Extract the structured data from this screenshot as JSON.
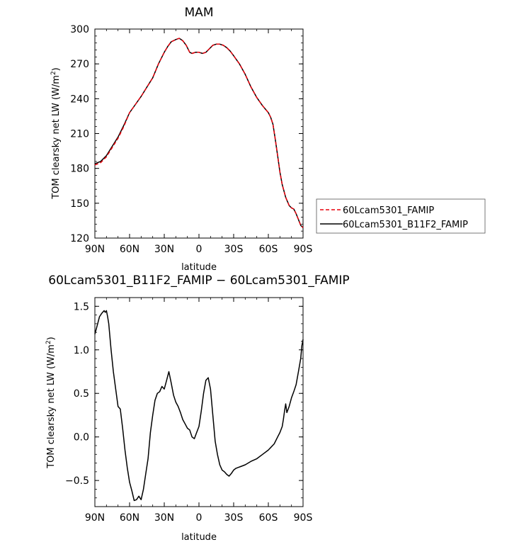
{
  "chart_data": [
    {
      "type": "line",
      "title": "MAM",
      "xlabel": "latitude",
      "ylabel": "TOM clearsky net LW (W/m²)",
      "ylabel_main": "TOM clearsky net LW (W/m",
      "ylabel_sup": "2",
      "ylabel_end": ")",
      "xlim": [
        90,
        -90
      ],
      "ylim": [
        120,
        300
      ],
      "x_ticks": [
        90,
        60,
        30,
        0,
        -30,
        -60,
        -90
      ],
      "x_tick_labels": [
        "90N",
        "60N",
        "30N",
        "0",
        "30S",
        "60S",
        "90S"
      ],
      "y_ticks": [
        120,
        150,
        180,
        210,
        240,
        270,
        300
      ],
      "y_tick_labels": [
        "120",
        "150",
        "180",
        "210",
        "240",
        "270",
        "300"
      ],
      "legend_position": "right",
      "series": [
        {
          "name": "60Lcam5301_FAMIP",
          "color": "#e8000b",
          "dash": "dashed",
          "x": [
            90,
            85,
            80,
            75,
            70,
            65,
            60,
            55,
            50,
            45,
            40,
            35,
            30,
            27,
            24,
            20,
            17,
            14,
            11,
            8,
            6,
            3,
            0,
            -3,
            -6,
            -9,
            -12,
            -15,
            -18,
            -21,
            -24,
            -27,
            -30,
            -35,
            -40,
            -45,
            -50,
            -55,
            -60,
            -62,
            -64,
            -66,
            -68,
            -70,
            -72,
            -75,
            -78,
            -80,
            -82,
            -84,
            -86,
            -88,
            -90
          ],
          "y": [
            183,
            185,
            190,
            198,
            206,
            216,
            228,
            235,
            242,
            250,
            258,
            270,
            280,
            285,
            289,
            291,
            292,
            290,
            286,
            280,
            279,
            280,
            280,
            279,
            280,
            283,
            286,
            287,
            287,
            286,
            284,
            281,
            277,
            270,
            261,
            250,
            241,
            234,
            228,
            224,
            218,
            205,
            191,
            177,
            166,
            155,
            148,
            146,
            145,
            141,
            136,
            131,
            129
          ]
        },
        {
          "name": "60Lcam5301_B11F2_FAMIP",
          "color": "#000000",
          "dash": "solid",
          "x": [
            90,
            85,
            80,
            75,
            70,
            65,
            60,
            55,
            50,
            45,
            40,
            35,
            30,
            27,
            24,
            20,
            17,
            14,
            11,
            8,
            6,
            3,
            0,
            -3,
            -6,
            -9,
            -12,
            -15,
            -18,
            -21,
            -24,
            -27,
            -30,
            -35,
            -40,
            -45,
            -50,
            -55,
            -60,
            -62,
            -64,
            -66,
            -68,
            -70,
            -72,
            -75,
            -78,
            -80,
            -82,
            -84,
            -86,
            -88,
            -90
          ],
          "y": [
            184,
            186,
            191,
            199,
            207,
            217,
            228,
            235,
            242,
            250,
            258,
            270,
            280,
            285,
            289,
            291,
            292,
            290,
            286,
            280,
            279,
            280,
            280,
            279,
            280,
            283,
            286,
            287,
            287,
            286,
            284,
            281,
            277,
            270,
            261,
            250,
            241,
            234,
            228,
            224,
            218,
            205,
            191,
            177,
            166,
            155,
            148,
            146,
            145,
            141,
            136,
            131,
            129
          ]
        }
      ]
    },
    {
      "type": "line",
      "title": "60Lcam5301_B11F2_FAMIP − 60Lcam5301_FAMIP",
      "xlabel": "latitude",
      "ylabel": "TOM clearsky net LW (W/m²)",
      "ylabel_main": "TOM clearsky net LW (W/m",
      "ylabel_sup": "2",
      "ylabel_end": ")",
      "xlim": [
        90,
        -90
      ],
      "ylim": [
        -0.8,
        1.6
      ],
      "x_ticks": [
        90,
        60,
        30,
        0,
        -30,
        -60,
        -90
      ],
      "x_tick_labels": [
        "90N",
        "60N",
        "30N",
        "0",
        "30S",
        "60S",
        "90S"
      ],
      "y_ticks": [
        -0.5,
        0.0,
        0.5,
        1.0,
        1.5
      ],
      "y_tick_labels": [
        "−0.5",
        "0.0",
        "0.5",
        "1.0",
        "1.5"
      ],
      "series": [
        {
          "name": "",
          "color": "#000000",
          "dash": "solid",
          "x": [
            90,
            88,
            86,
            84,
            82,
            81,
            80,
            79,
            78,
            76,
            74,
            72,
            70,
            68,
            66,
            64,
            62,
            60,
            58,
            56,
            54,
            52,
            50,
            48,
            46,
            44,
            42,
            40,
            38,
            36,
            34,
            32,
            30,
            28,
            26,
            24,
            22,
            20,
            18,
            16,
            14,
            12,
            10,
            8,
            6,
            4,
            2,
            0,
            -2,
            -4,
            -6,
            -8,
            -10,
            -12,
            -14,
            -16,
            -18,
            -20,
            -22,
            -24,
            -26,
            -28,
            -30,
            -32,
            -34,
            -36,
            -40,
            -45,
            -50,
            -55,
            -60,
            -65,
            -68,
            -70,
            -72,
            -73,
            -74,
            -75,
            -76,
            -78,
            -80,
            -82,
            -84,
            -86,
            -88,
            -89,
            -90
          ],
          "y": [
            1.18,
            1.28,
            1.38,
            1.42,
            1.45,
            1.43,
            1.45,
            1.38,
            1.3,
            1.0,
            0.75,
            0.55,
            0.35,
            0.32,
            0.1,
            -0.15,
            -0.35,
            -0.52,
            -0.62,
            -0.73,
            -0.72,
            -0.68,
            -0.72,
            -0.6,
            -0.42,
            -0.25,
            0.05,
            0.25,
            0.42,
            0.5,
            0.52,
            0.58,
            0.55,
            0.65,
            0.75,
            0.62,
            0.48,
            0.4,
            0.35,
            0.28,
            0.2,
            0.15,
            0.1,
            0.08,
            0.0,
            -0.02,
            0.05,
            0.12,
            0.3,
            0.5,
            0.65,
            0.68,
            0.55,
            0.25,
            -0.05,
            -0.2,
            -0.32,
            -0.38,
            -0.4,
            -0.43,
            -0.45,
            -0.42,
            -0.38,
            -0.36,
            -0.35,
            -0.34,
            -0.32,
            -0.28,
            -0.25,
            -0.2,
            -0.15,
            -0.08,
            0.0,
            0.05,
            0.12,
            0.2,
            0.3,
            0.38,
            0.28,
            0.35,
            0.45,
            0.52,
            0.6,
            0.75,
            0.9,
            1.05,
            1.12
          ]
        }
      ]
    }
  ]
}
